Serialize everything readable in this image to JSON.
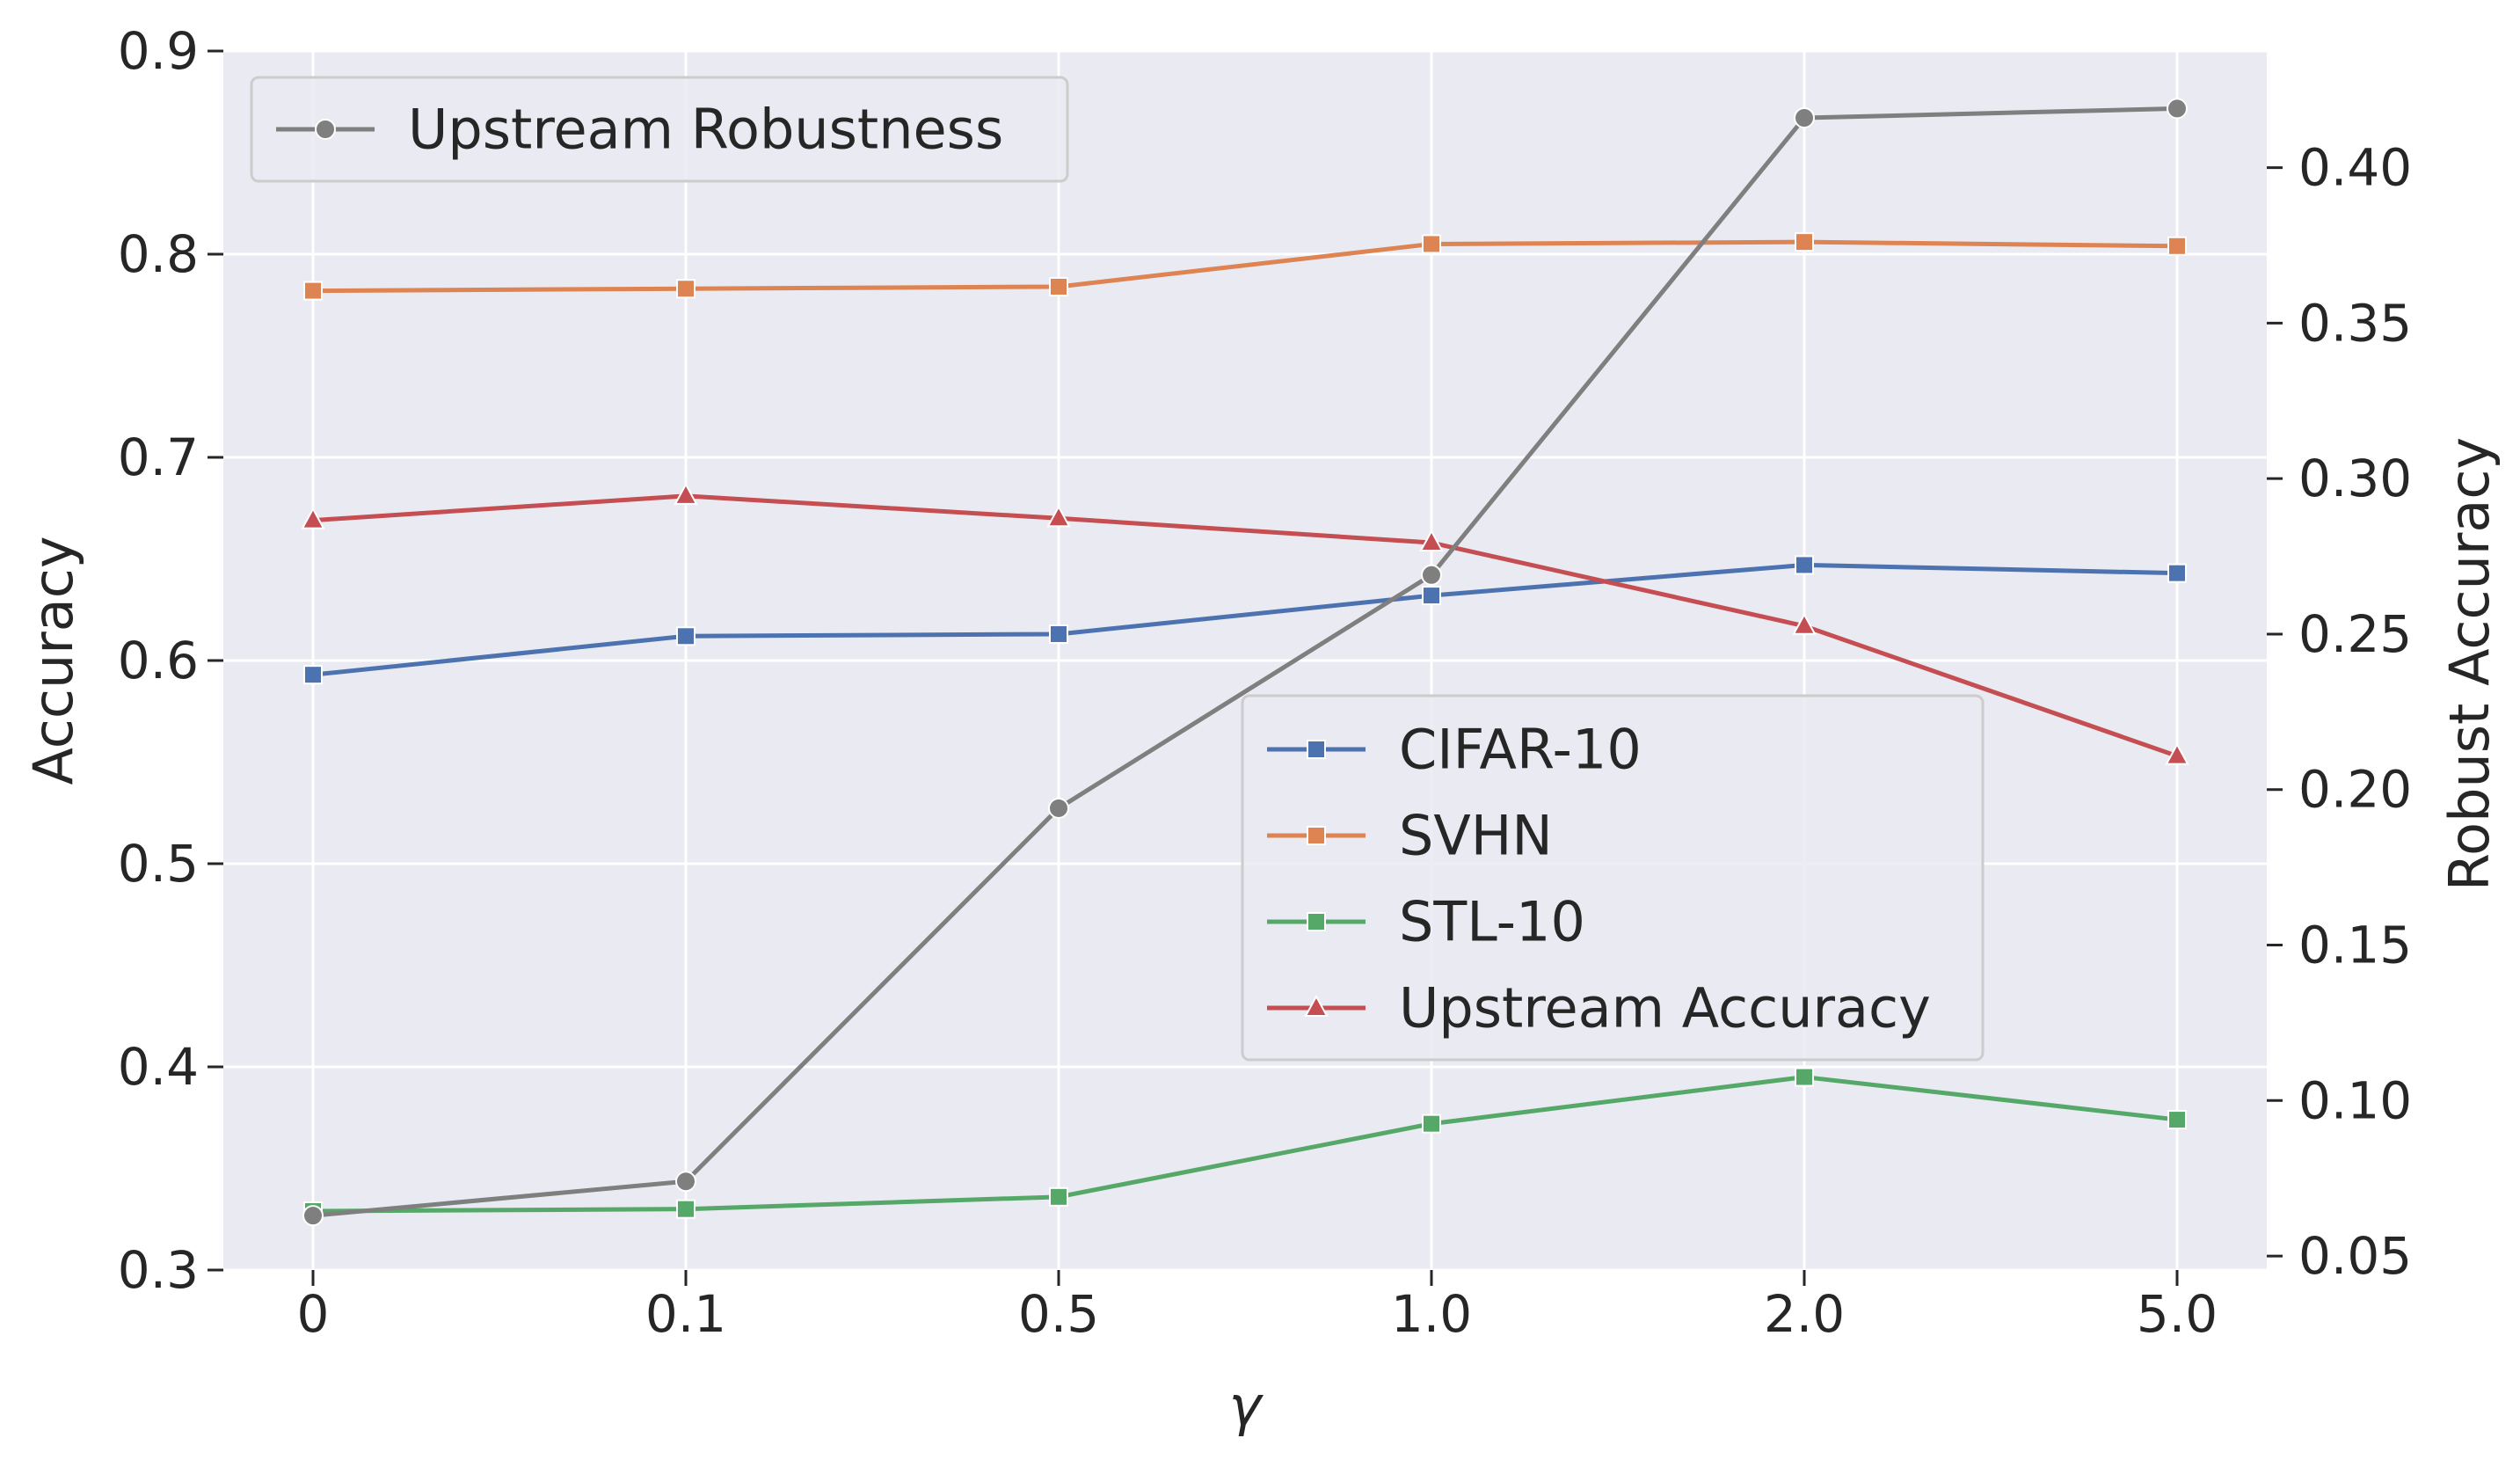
{
  "chart_data": {
    "type": "line",
    "categories": [
      "0",
      "0.1",
      "0.5",
      "1.0",
      "2.0",
      "5.0"
    ],
    "xlabel": "γ",
    "ylabel_left": "Accuracy",
    "ylabel_right": "Robust Accuracy",
    "ylim_left": [
      0.3,
      0.9
    ],
    "ylim_right": [
      0.0455,
      0.4375
    ],
    "yticks_left": [
      0.3,
      0.4,
      0.5,
      0.6,
      0.7,
      0.8,
      0.9
    ],
    "yticks_left_labels": [
      "0.3",
      "0.4",
      "0.5",
      "0.6",
      "0.7",
      "0.8",
      "0.9"
    ],
    "yticks_right": [
      0.05,
      0.1,
      0.15,
      0.2,
      0.25,
      0.3,
      0.35,
      0.4
    ],
    "yticks_right_labels": [
      "0.05",
      "0.10",
      "0.15",
      "0.20",
      "0.25",
      "0.30",
      "0.35",
      "0.40"
    ],
    "grid": true,
    "series": [
      {
        "name": "CIFAR-10",
        "axis": "left",
        "marker": "square",
        "color": "#4c72b0",
        "values": [
          0.593,
          0.612,
          0.613,
          0.632,
          0.647,
          0.643
        ]
      },
      {
        "name": "SVHN",
        "axis": "left",
        "marker": "square",
        "color": "#dd8452",
        "values": [
          0.782,
          0.783,
          0.784,
          0.805,
          0.806,
          0.804
        ]
      },
      {
        "name": "STL-10",
        "axis": "left",
        "marker": "square",
        "color": "#55a868",
        "values": [
          0.329,
          0.33,
          0.336,
          0.372,
          0.395,
          0.374
        ]
      },
      {
        "name": "Upstream Accuracy",
        "axis": "left",
        "marker": "triangle",
        "color": "#c44e52",
        "values": [
          0.669,
          0.681,
          0.67,
          0.658,
          0.617,
          0.553
        ]
      },
      {
        "name": "Upstream Robustness",
        "axis": "right",
        "marker": "circle",
        "color": "#7f7f7f",
        "values": [
          0.063,
          0.074,
          0.194,
          0.269,
          0.416,
          0.419
        ]
      }
    ],
    "legends": [
      {
        "position": "top-left",
        "entries": [
          "Upstream Robustness"
        ]
      },
      {
        "position": "center-right",
        "entries": [
          "CIFAR-10",
          "SVHN",
          "STL-10",
          "Upstream Accuracy"
        ]
      }
    ]
  }
}
